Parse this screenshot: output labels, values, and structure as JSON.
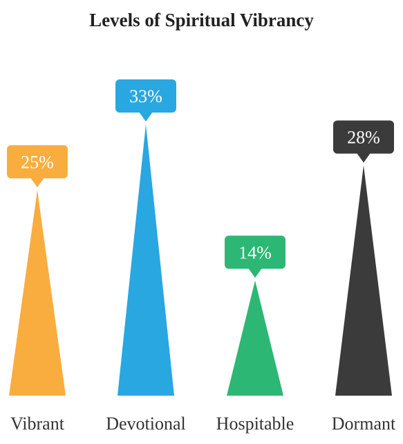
{
  "chart_data": {
    "type": "bar",
    "title": "Levels of Spiritual Vibrancy",
    "categories": [
      "Vibrant",
      "Devotional",
      "Hospitable",
      "Dormant"
    ],
    "values": [
      25,
      33,
      14,
      28
    ],
    "value_labels": [
      "25%",
      "33%",
      "14%",
      "28%"
    ],
    "colors": [
      "#f9ad3e",
      "#29a7e1",
      "#2db774",
      "#3b3b3b"
    ],
    "ylim": [
      0,
      33
    ],
    "grid": false,
    "legend": "none",
    "mark_shape": "triangle"
  }
}
